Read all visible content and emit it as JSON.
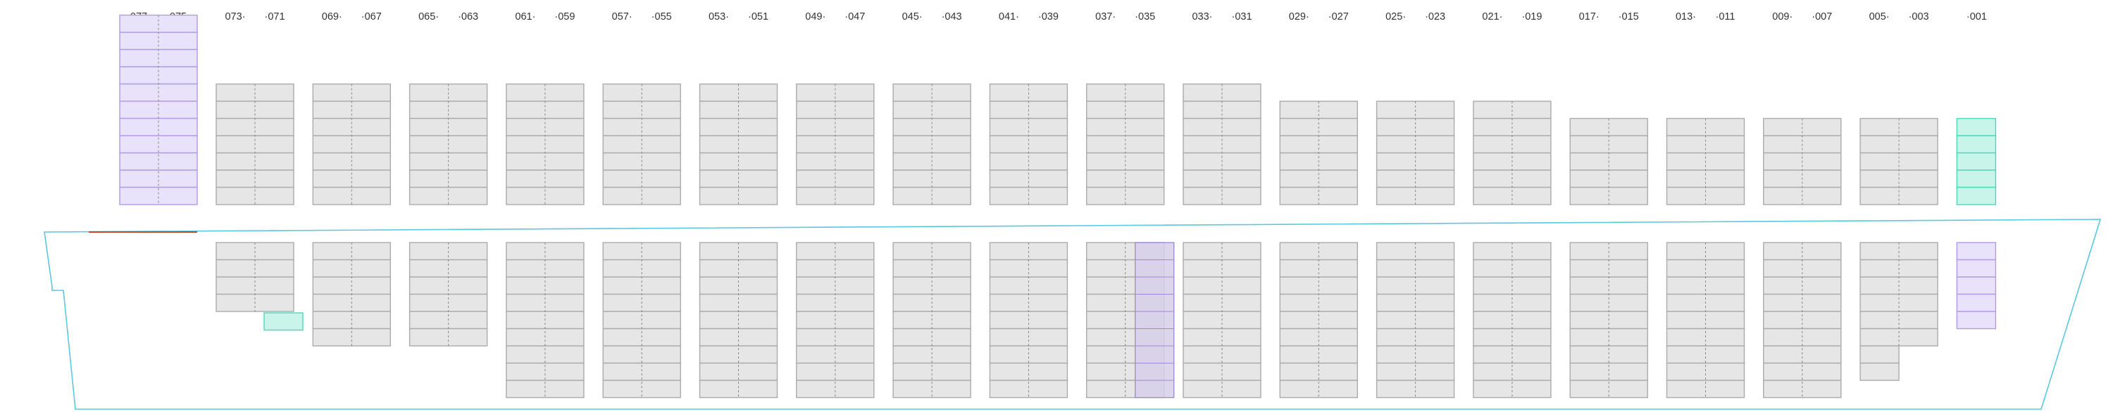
{
  "bay_labels": [
    "077",
    "075",
    "073·",
    "·071",
    "069·",
    "·067",
    "065·",
    "·063",
    "061·",
    "·059",
    "057·",
    "·055",
    "053·",
    "·051",
    "049·",
    "·047",
    "045·",
    "·043",
    "041·",
    "·039",
    "037·",
    "·035",
    "033·",
    "·031",
    "029·",
    "·027",
    "025·",
    "·023",
    "021·",
    "·019",
    "017·",
    "·015",
    "013·",
    "·011",
    "009·",
    "·007",
    "005·",
    "·003",
    "·001"
  ],
  "slot_colors": {
    "empty": {
      "fill": "#e6e6e6",
      "stroke": "#ababab"
    },
    "purple": {
      "fill": "#e8e2fb",
      "stroke": "#b29be8"
    },
    "teal": {
      "fill": "#c9f4ea",
      "stroke": "#4fd6b8"
    },
    "dark_purple": {
      "fill": "#d5cfe8",
      "stroke": "#a08cd6"
    }
  },
  "hull": {
    "outline_color": "#5ac8e0",
    "deck_marker_color": "#c94820"
  },
  "bays": [
    {
      "id": "077-075",
      "deck_tiers": 11,
      "deck_color": "purple",
      "hold_tiers": 0,
      "split": false
    },
    {
      "id": "073-071",
      "deck_tiers": 7,
      "deck_color": "empty",
      "hold_tiers": 4,
      "hold_color": "empty",
      "hold_extra": "teal"
    },
    {
      "id": "069-067",
      "deck_tiers": 7,
      "deck_color": "empty",
      "hold_tiers": 6,
      "hold_color": "empty"
    },
    {
      "id": "065-063",
      "deck_tiers": 7,
      "deck_color": "empty",
      "hold_tiers": 6,
      "hold_color": "empty"
    },
    {
      "id": "061-059",
      "deck_tiers": 7,
      "deck_color": "empty",
      "hold_tiers": 9,
      "hold_color": "empty"
    },
    {
      "id": "057-055",
      "deck_tiers": 7,
      "deck_color": "empty",
      "hold_tiers": 9,
      "hold_color": "empty"
    },
    {
      "id": "053-051",
      "deck_tiers": 7,
      "deck_color": "empty",
      "hold_tiers": 9,
      "hold_color": "empty"
    },
    {
      "id": "049-047",
      "deck_tiers": 7,
      "deck_color": "empty",
      "hold_tiers": 9,
      "hold_color": "empty"
    },
    {
      "id": "045-043",
      "deck_tiers": 7,
      "deck_color": "empty",
      "hold_tiers": 9,
      "hold_color": "empty"
    },
    {
      "id": "041-039",
      "deck_tiers": 7,
      "deck_color": "empty",
      "hold_tiers": 9,
      "hold_color": "empty"
    },
    {
      "id": "037-035",
      "deck_tiers": 7,
      "deck_color": "empty",
      "hold_tiers": 9,
      "hold_color": "empty",
      "hold_highlight": "dark_purple"
    },
    {
      "id": "033-031",
      "deck_tiers": 7,
      "deck_color": "empty",
      "hold_tiers": 9,
      "hold_color": "empty"
    },
    {
      "id": "029-027",
      "deck_tiers": 6,
      "deck_color": "empty",
      "hold_tiers": 9,
      "hold_color": "empty"
    },
    {
      "id": "025-023",
      "deck_tiers": 6,
      "deck_color": "empty",
      "hold_tiers": 9,
      "hold_color": "empty"
    },
    {
      "id": "021-019",
      "deck_tiers": 6,
      "deck_color": "empty",
      "hold_tiers": 9,
      "hold_color": "empty"
    },
    {
      "id": "017-015",
      "deck_tiers": 5,
      "deck_color": "empty",
      "hold_tiers": 9,
      "hold_color": "empty"
    },
    {
      "id": "013-011",
      "deck_tiers": 5,
      "deck_color": "empty",
      "hold_tiers": 9,
      "hold_color": "empty"
    },
    {
      "id": "009-007",
      "deck_tiers": 5,
      "deck_color": "empty",
      "hold_tiers": 9,
      "hold_color": "empty"
    },
    {
      "id": "005-003",
      "deck_tiers": 5,
      "deck_color": "empty",
      "hold_tiers": 6,
      "hold_color": "empty",
      "hold_tail": 2
    },
    {
      "id": "001",
      "deck_tiers": 5,
      "deck_color": "teal",
      "hold_tiers": 5,
      "hold_color": "purple",
      "single": true
    }
  ]
}
